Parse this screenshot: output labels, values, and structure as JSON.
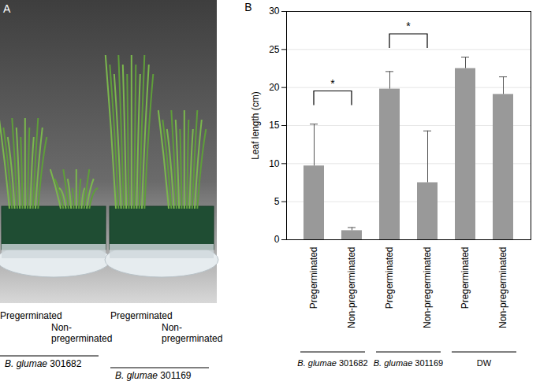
{
  "chart_data": {
    "type": "bar",
    "panel": "B",
    "y_label": "Leaf length (cm)",
    "categories": [
      "Pregerminated",
      "Non-pregerminated",
      "Pregerminated",
      "Non-pregerminated",
      "Pregerminated",
      "Non-pregerminated"
    ],
    "values": [
      9.7,
      1.2,
      19.8,
      7.5,
      22.5,
      19.1
    ],
    "errors": [
      5.5,
      0.4,
      2.3,
      6.8,
      1.5,
      2.3
    ],
    "color": "#999999",
    "ylim": [
      0,
      30
    ],
    "yticks": [
      0,
      5,
      10,
      15,
      20,
      25,
      30
    ],
    "grid": true,
    "groups": [
      {
        "label": "B. glumae 301682",
        "from": 0,
        "to": 1
      },
      {
        "label": "B. glumae 301169",
        "from": 2,
        "to": 3
      },
      {
        "label": "DW",
        "from": 4,
        "to": 5
      }
    ],
    "significance": [
      {
        "from": 0,
        "to": 1,
        "y": 19.5,
        "label": "*"
      },
      {
        "from": 2,
        "to": 3,
        "y": 27,
        "label": "*"
      }
    ]
  },
  "photo_panel": {
    "panel": "A",
    "labels": [
      "Pregerminated",
      "Non-pregerminated",
      "Pregerminated",
      "Non-pregerminated"
    ],
    "groups": [
      {
        "label": "B. glumae 301682",
        "from": 0,
        "to": 1
      },
      {
        "label": "B. glumae 301169",
        "from": 2,
        "to": 3
      }
    ]
  }
}
